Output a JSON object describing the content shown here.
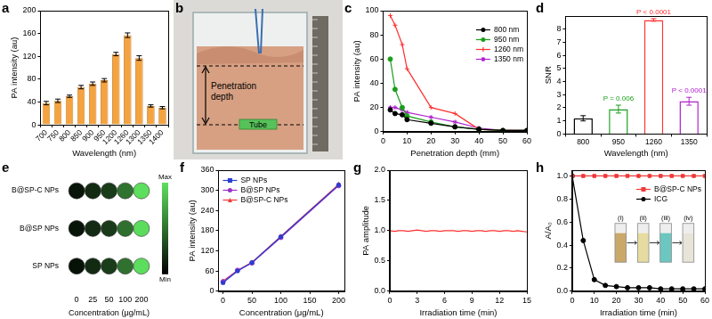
{
  "chart_data": [
    {
      "type": "bar",
      "title": "a",
      "categories": [
        "700",
        "750",
        "800",
        "850",
        "900",
        "950",
        "1200",
        "1260",
        "1300",
        "1350",
        "1400"
      ],
      "values": [
        38,
        42,
        50,
        66,
        72,
        78,
        124,
        157,
        117,
        33,
        30
      ],
      "errors": [
        3,
        3,
        2,
        3,
        3,
        3,
        3,
        4,
        4,
        2,
        2
      ],
      "color": "#f4a340",
      "xlabel": "Wavelength (nm)",
      "ylabel": "PA intensity (au)",
      "ylim": [
        0,
        200
      ],
      "yticks": [
        0,
        40,
        80,
        120,
        160,
        200
      ],
      "grid": false
    },
    {
      "type": "photo",
      "title": "b",
      "annotations": [
        "Penetration depth",
        "Tube"
      ]
    },
    {
      "type": "line",
      "title": "c",
      "x": [
        3,
        5,
        8,
        10,
        20,
        30,
        40,
        50,
        60
      ],
      "series": [
        {
          "name": "800 nm",
          "color": "#000000",
          "marker": "circle",
          "values": [
            18,
            15,
            14,
            10,
            7,
            4,
            2,
            1,
            1
          ]
        },
        {
          "name": "950 nm",
          "color": "#1a9e1a",
          "marker": "circle",
          "values": [
            60,
            35,
            20,
            13,
            8,
            4,
            2,
            1,
            1
          ]
        },
        {
          "name": "1260 nm",
          "color": "#ff3030",
          "marker": "cross",
          "values": [
            96,
            88,
            72,
            52,
            20,
            15,
            2,
            1,
            1
          ]
        },
        {
          "name": "1350 nm",
          "color": "#b020d0",
          "marker": "star",
          "values": [
            20,
            20,
            18,
            16,
            12,
            8,
            3,
            1,
            1
          ]
        }
      ],
      "xlabel": "Penetration depth (mm)",
      "ylabel": "PA intensity (au)",
      "xlim": [
        0,
        60
      ],
      "xticks": [
        0,
        10,
        20,
        30,
        40,
        50,
        60
      ],
      "ylim": [
        0,
        100
      ],
      "yticks": [
        0,
        20,
        40,
        60,
        80,
        100
      ],
      "legend": "upper right",
      "grid": false
    },
    {
      "type": "bar",
      "title": "d",
      "categories": [
        "800",
        "950",
        "1260",
        "1350"
      ],
      "values": [
        1.2,
        1.9,
        8.7,
        2.5
      ],
      "errors": [
        0.2,
        0.3,
        0.1,
        0.3
      ],
      "colors": [
        "#000000",
        "#1a9e1a",
        "#ff3030",
        "#b020d0"
      ],
      "annotations": [
        {
          "text": "P = 0.006",
          "category": "950"
        },
        {
          "text": "P < 0.0001",
          "category": "1260"
        },
        {
          "text": "P < 0.0001",
          "category": "1350"
        }
      ],
      "xlabel": "Wavelength (nm)",
      "ylabel": "SNR",
      "ylim": [
        0,
        9
      ],
      "yticks": [
        0,
        1,
        2,
        3,
        4,
        5,
        6,
        7,
        8
      ],
      "grid": false
    },
    {
      "type": "heatmap",
      "title": "e",
      "categories": [
        "0",
        "25",
        "50",
        "100",
        "200"
      ],
      "rows": [
        "B@SP-C NPs",
        "B@SP NPs",
        "SP NPs"
      ],
      "cells": [
        [
          30,
          62,
          86,
          163,
          318
        ],
        [
          28,
          62,
          84,
          160,
          314
        ],
        [
          25,
          60,
          85,
          162,
          316
        ]
      ],
      "color": "#5ee05e",
      "colorbar": {
        "range": [
          0,
          320
        ],
        "ticks": [
          {
            "value": 0,
            "label": "Min"
          },
          {
            "value": 320,
            "label": "Max"
          }
        ]
      },
      "xlabel": "Concentration (μg/mL)"
    },
    {
      "type": "line",
      "title": "f",
      "x": [
        0,
        25,
        50,
        100,
        200
      ],
      "series": [
        {
          "name": "SP NPs",
          "color": "#2a3fd0",
          "marker": "square",
          "values": [
            25,
            60,
            85,
            162,
            316
          ]
        },
        {
          "name": "B@SP NPs",
          "color": "#9b30c8",
          "marker": "circle",
          "values": [
            28,
            62,
            84,
            160,
            314
          ]
        },
        {
          "name": "B@SP-C NPs",
          "color": "#f03a3a",
          "marker": "triangle",
          "values": [
            30,
            62,
            86,
            163,
            318
          ]
        }
      ],
      "xlabel": "Concentration (μg/mL)",
      "ylabel": "PA intensity (au)",
      "xlim": [
        -8,
        210
      ],
      "xticks": [
        0,
        50,
        100,
        150,
        200
      ],
      "ylim": [
        0,
        360
      ],
      "yticks": [
        0,
        60,
        120,
        180,
        240,
        300,
        360
      ],
      "legend": "upper left",
      "grid": false
    },
    {
      "type": "line",
      "title": "g",
      "x": [
        0,
        0.5,
        1,
        1.5,
        2,
        2.5,
        3,
        3.5,
        4,
        4.5,
        5,
        5.5,
        6,
        6.5,
        7,
        7.5,
        8,
        8.5,
        9,
        9.5,
        10,
        10.5,
        11,
        11.5,
        12,
        12.5,
        13,
        13.5,
        14,
        14.5,
        15
      ],
      "series": [
        {
          "color": "#ff3030",
          "marker": "none",
          "values": [
            1.0,
            0.99,
            1.0,
            1.0,
            0.99,
            1.0,
            1.01,
            1.0,
            0.99,
            1.0,
            1.0,
            0.99,
            1.0,
            1.0,
            1.0,
            0.99,
            1.0,
            1.0,
            0.99,
            1.0,
            1.0,
            0.99,
            1.0,
            1.0,
            0.99,
            1.0,
            1.0,
            0.99,
            1.0,
            0.99,
            0.98
          ]
        }
      ],
      "xlabel": "Irradiation time (min)",
      "ylabel": "PA amplitude",
      "xlim": [
        0,
        15
      ],
      "xticks": [
        0,
        3,
        6,
        9,
        12,
        15
      ],
      "ylim": [
        0,
        2
      ],
      "yticks": [
        {
          "value": 0,
          "label": "0.0"
        },
        0.5,
        {
          "value": 1,
          "label": "1.0"
        },
        1.5,
        {
          "value": 2,
          "label": "2.0"
        }
      ],
      "grid": false
    },
    {
      "type": "line",
      "title": "h",
      "x": [
        0,
        5,
        10,
        15,
        20,
        25,
        30,
        35,
        40,
        45,
        50,
        55,
        60
      ],
      "series": [
        {
          "name": "B@SP-C NPs",
          "color": "#f03a3a",
          "marker": "square",
          "values": [
            1,
            1,
            1,
            1,
            1,
            1,
            1,
            1,
            1,
            1,
            1,
            1,
            1
          ]
        },
        {
          "name": "ICG",
          "color": "#000000",
          "marker": "circle",
          "values": [
            1,
            0.44,
            0.1,
            0.05,
            0.04,
            0.03,
            0.03,
            0.03,
            0.02,
            0.02,
            0.02,
            0.02,
            0.02
          ]
        }
      ],
      "annotations": [
        "(i)",
        "(ii)",
        "(iii)",
        "(iv)"
      ],
      "xlabel": "Irradiation time (min)",
      "ylabel": "A/A₀",
      "xlim": [
        0,
        60
      ],
      "xticks": [
        0,
        10,
        20,
        30,
        40,
        50,
        60
      ],
      "ylim": [
        0,
        1.05
      ],
      "yticks": [
        {
          "value": 0,
          "label": "0.0"
        },
        0.2,
        0.4,
        0.6,
        0.8,
        {
          "value": 1,
          "label": "1.0"
        }
      ],
      "legend": "upper right",
      "grid": false
    }
  ]
}
